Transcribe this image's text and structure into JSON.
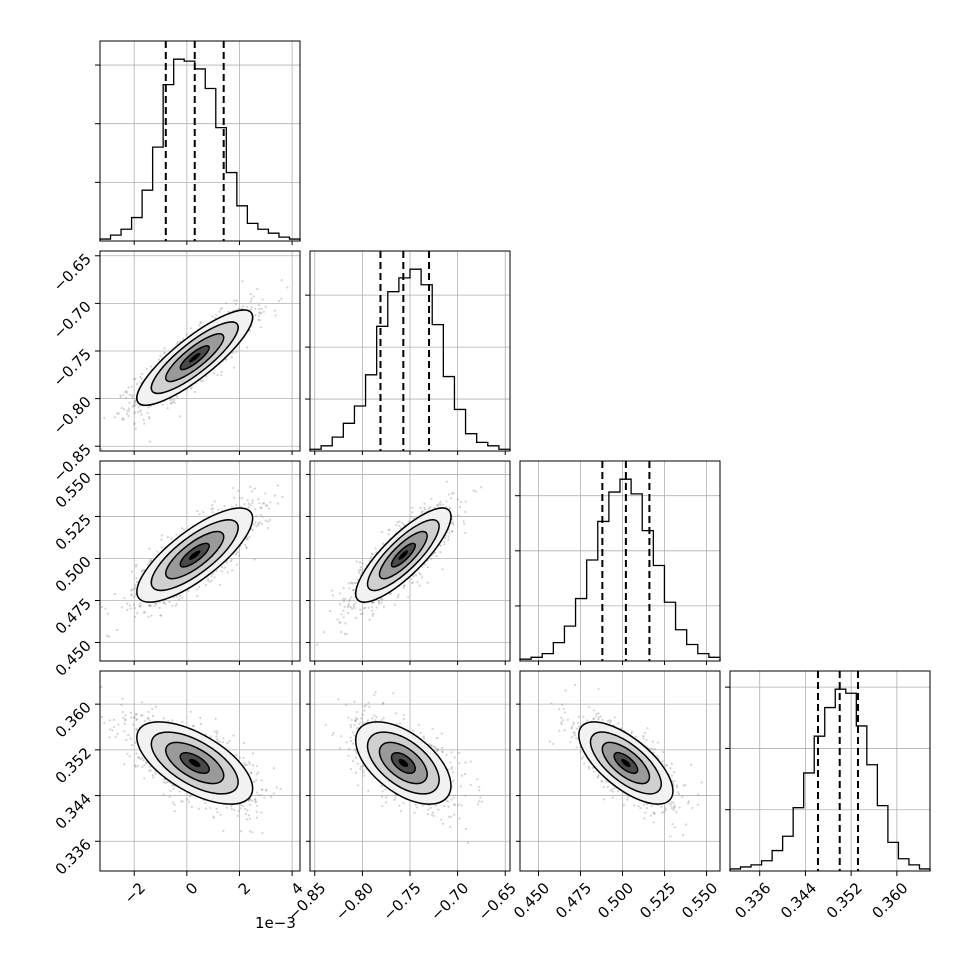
{
  "chart_data": {
    "type": "corner",
    "x_offset_text": "1e−3",
    "params": [
      {
        "range": [
          -3.3,
          4.3
        ],
        "ticks": [
          -2,
          0,
          2,
          4
        ],
        "tick_labels": [
          "−2",
          "0",
          "2",
          "4"
        ],
        "quantiles": [
          -0.8,
          0.3,
          1.4
        ],
        "hist_counts": [
          1,
          3,
          6,
          12,
          26,
          48,
          80,
          93,
          92,
          88,
          78,
          58,
          35,
          18,
          9,
          6,
          4,
          2,
          1
        ]
      },
      {
        "range": [
          -0.855,
          -0.645
        ],
        "ticks": [
          -0.85,
          -0.8,
          -0.75,
          -0.7,
          -0.65
        ],
        "tick_labels": [
          "−0.85",
          "−0.80",
          "−0.75",
          "−0.70",
          "−0.65"
        ],
        "quantiles": [
          -0.781,
          -0.757,
          -0.73
        ],
        "hist_counts": [
          1,
          3,
          8,
          16,
          26,
          44,
          72,
          92,
          100,
          105,
          96,
          73,
          43,
          24,
          10,
          5,
          3,
          1
        ]
      },
      {
        "range": [
          0.439,
          0.558
        ],
        "ticks": [
          0.45,
          0.475,
          0.5,
          0.525,
          0.55
        ],
        "tick_labels": [
          "0.450",
          "0.475",
          "0.500",
          "0.525",
          "0.550"
        ],
        "quantiles": [
          0.488,
          0.502,
          0.516
        ],
        "hist_counts": [
          1,
          2,
          4,
          10,
          19,
          34,
          55,
          76,
          92,
          99,
          91,
          71,
          52,
          32,
          17,
          9,
          4,
          2
        ]
      },
      {
        "range": [
          0.3308,
          0.3658
        ],
        "ticks": [
          0.336,
          0.344,
          0.352,
          0.36
        ],
        "tick_labels": [
          "0.336",
          "0.344",
          "0.352",
          "0.360"
        ],
        "quantiles": [
          0.3462,
          0.35,
          0.3532
        ],
        "hist_counts": [
          1,
          2,
          3,
          5,
          10,
          17,
          31,
          48,
          66,
          80,
          89,
          87,
          71,
          52,
          32,
          14,
          6,
          3,
          1
        ]
      }
    ],
    "pairs": [
      {
        "row": 1,
        "col": 0,
        "center": [
          0.3,
          -0.757
        ],
        "sigma": [
          1.1,
          0.025
        ],
        "corr": 0.85
      },
      {
        "row": 2,
        "col": 0,
        "center": [
          0.3,
          0.502
        ],
        "sigma": [
          1.1,
          0.014
        ],
        "corr": 0.78
      },
      {
        "row": 2,
        "col": 1,
        "center": [
          -0.757,
          0.502
        ],
        "sigma": [
          0.025,
          0.014
        ],
        "corr": 0.82
      },
      {
        "row": 3,
        "col": 0,
        "center": [
          0.3,
          0.3497
        ],
        "sigma": [
          1.1,
          0.0036
        ],
        "corr": -0.62
      },
      {
        "row": 3,
        "col": 1,
        "center": [
          -0.757,
          0.3497
        ],
        "sigma": [
          0.025,
          0.0036
        ],
        "corr": -0.55
      },
      {
        "row": 3,
        "col": 2,
        "center": [
          0.502,
          0.3497
        ],
        "sigma": [
          0.014,
          0.0036
        ],
        "corr": -0.68
      }
    ],
    "contour_levels": [
      0.5,
      1.0,
      1.5,
      2.0
    ],
    "grid": true,
    "colors": {
      "points": "#808080",
      "hist": "#000000",
      "grid": "#b0b0b0"
    }
  }
}
